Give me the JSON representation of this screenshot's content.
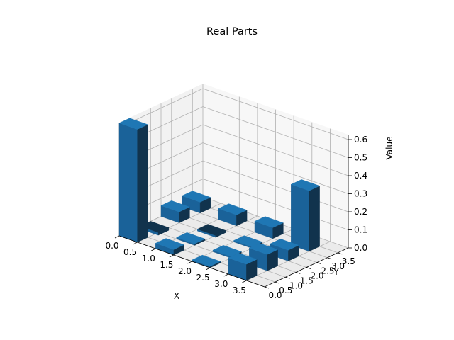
{
  "chart_data": {
    "type": "bar3d",
    "title": "Real Parts",
    "xlabel": "X",
    "ylabel": "Y",
    "zlabel": "Value",
    "xlim": [
      0,
      4
    ],
    "ylim": [
      0,
      4
    ],
    "zlim": [
      0,
      0.625
    ],
    "x_ticks": [
      "0.0",
      "0.5",
      "1.0",
      "1.5",
      "2.0",
      "2.5",
      "3.0",
      "3.5"
    ],
    "y_ticks": [
      "0.0",
      "0.5",
      "1.0",
      "1.5",
      "2.0",
      "2.5",
      "3.0",
      "3.5"
    ],
    "z_ticks": [
      "0.0",
      "0.1",
      "0.2",
      "0.3",
      "0.4",
      "0.5",
      "0.6"
    ],
    "grid": true,
    "bar_color": "#1f77b4",
    "bars": [
      {
        "x": 0,
        "y": 0,
        "value": 0.625
      },
      {
        "x": 0,
        "y": 1,
        "value": -0.015
      },
      {
        "x": 0,
        "y": 2,
        "value": 0.06
      },
      {
        "x": 0,
        "y": 3,
        "value": 0.06
      },
      {
        "x": 1,
        "y": 0,
        "value": 0.03
      },
      {
        "x": 1,
        "y": 1,
        "value": 0.0
      },
      {
        "x": 1,
        "y": 2,
        "value": -0.01
      },
      {
        "x": 1,
        "y": 3,
        "value": 0.06
      },
      {
        "x": 2,
        "y": 0,
        "value": 0.0
      },
      {
        "x": 2,
        "y": 1,
        "value": 0.0
      },
      {
        "x": 2,
        "y": 2,
        "value": 0.0
      },
      {
        "x": 2,
        "y": 3,
        "value": 0.06
      },
      {
        "x": 3,
        "y": 0,
        "value": 0.09
      },
      {
        "x": 3,
        "y": 1,
        "value": 0.09
      },
      {
        "x": 3,
        "y": 2,
        "value": 0.06
      },
      {
        "x": 3,
        "y": 3,
        "value": 0.335
      }
    ]
  }
}
